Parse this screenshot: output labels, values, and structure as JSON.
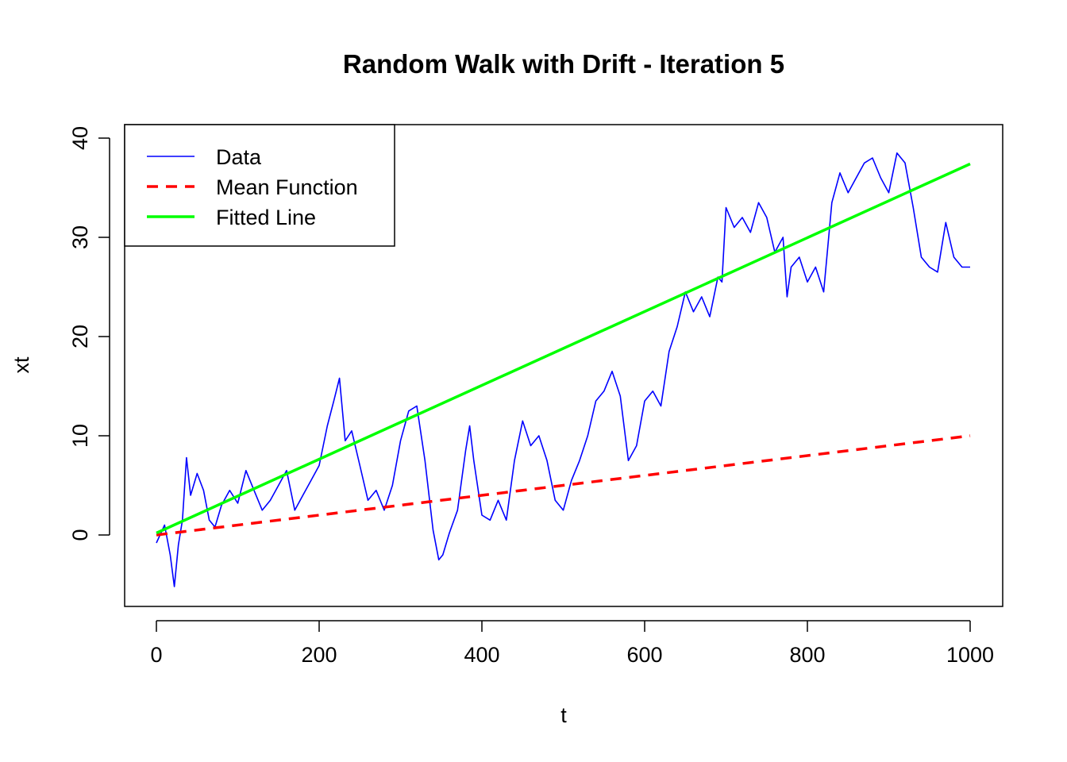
{
  "chart_data": {
    "type": "line",
    "title": "Random Walk with Drift - Iteration 5",
    "xlabel": "t",
    "ylabel": "xt",
    "xlim": [
      0,
      1000
    ],
    "ylim": [
      -6,
      40
    ],
    "x_ticks": [
      "0",
      "200",
      "400",
      "600",
      "800",
      "1000"
    ],
    "y_ticks": [
      "0",
      "10",
      "20",
      "30",
      "40"
    ],
    "legend_position": "top-left",
    "series": [
      {
        "name": "Data",
        "color": "#0000ff",
        "style": "solid-thin",
        "x": [
          0,
          10,
          17,
          22,
          27,
          32,
          37,
          42,
          50,
          58,
          65,
          72,
          80,
          90,
          100,
          110,
          120,
          130,
          140,
          150,
          160,
          170,
          180,
          190,
          200,
          210,
          218,
          225,
          232,
          240,
          250,
          260,
          270,
          280,
          290,
          300,
          310,
          320,
          330,
          340,
          347,
          352,
          360,
          370,
          380,
          385,
          390,
          400,
          410,
          420,
          430,
          440,
          450,
          460,
          470,
          480,
          490,
          500,
          510,
          520,
          530,
          540,
          550,
          560,
          570,
          580,
          590,
          600,
          610,
          620,
          630,
          640,
          650,
          660,
          670,
          680,
          690,
          695,
          700,
          710,
          720,
          730,
          740,
          750,
          760,
          770,
          775,
          780,
          790,
          800,
          810,
          820,
          830,
          840,
          850,
          860,
          870,
          880,
          890,
          900,
          910,
          920,
          930,
          940,
          950,
          960,
          970,
          980,
          990,
          1000
        ],
        "values": [
          -0.8,
          1.0,
          -2.0,
          -5.2,
          -1.0,
          1.5,
          7.8,
          4.0,
          6.2,
          4.5,
          1.5,
          0.8,
          3.0,
          4.5,
          3.2,
          6.5,
          4.5,
          2.5,
          3.5,
          5.0,
          6.5,
          2.5,
          4.0,
          5.5,
          7.0,
          11.0,
          13.5,
          15.8,
          9.5,
          10.5,
          7.0,
          3.5,
          4.5,
          2.5,
          5.0,
          9.5,
          12.5,
          13.0,
          7.5,
          0.5,
          -2.5,
          -2.0,
          0.2,
          2.5,
          8.5,
          11.0,
          7.5,
          2.0,
          1.5,
          3.5,
          1.5,
          7.5,
          11.5,
          9.0,
          10.0,
          7.5,
          3.5,
          2.5,
          5.5,
          7.5,
          10.0,
          13.5,
          14.5,
          16.5,
          14.0,
          7.5,
          9.0,
          13.5,
          14.5,
          13.0,
          18.5,
          21.0,
          24.5,
          22.5,
          24.0,
          22.0,
          26.0,
          25.5,
          33.0,
          31.0,
          32.0,
          30.5,
          33.5,
          32.0,
          28.5,
          30.0,
          24.0,
          27.0,
          28.0,
          25.5,
          27.0,
          24.5,
          33.5,
          36.5,
          34.5,
          36.0,
          37.5,
          38.0,
          36.0,
          34.5,
          38.5,
          37.5,
          33.0,
          28.0,
          27.0,
          26.5,
          31.5,
          28.0,
          27.0,
          27.0
        ]
      },
      {
        "name": "Mean Function",
        "color": "#ff0000",
        "style": "dashed",
        "x": [
          0,
          1000
        ],
        "values": [
          0,
          10
        ]
      },
      {
        "name": "Fitted Line",
        "color": "#00ff00",
        "style": "solid-thick",
        "x": [
          0,
          1000
        ],
        "values": [
          0.2,
          37.4
        ]
      }
    ]
  }
}
